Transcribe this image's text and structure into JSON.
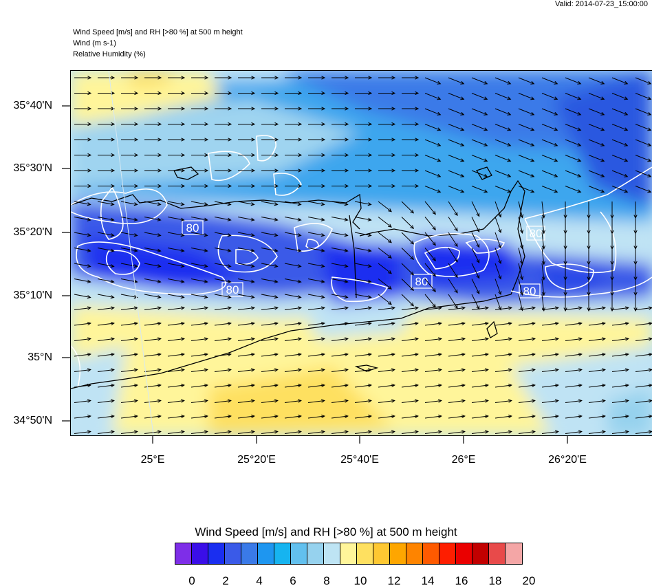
{
  "valid_text": "Valid: 2014-07-23_15:00:00",
  "header": {
    "line1": "Wind Speed [m/s] and RH [>80 %] at 500 m height",
    "line2": "Wind   (m s-1)",
    "line3": "Relative Humidity   (%)"
  },
  "map": {
    "lat_labels": [
      "35°40'N",
      "35°30'N",
      "35°20'N",
      "35°10'N",
      "35°N",
      "34°50'N"
    ],
    "lon_labels": [
      "25°E",
      "25°20'E",
      "25°40'E",
      "26°E",
      "26°20'E"
    ],
    "contour_labels": [
      "80",
      "80",
      "80",
      "80",
      "80"
    ],
    "wind_vector_field": "arrows-grid",
    "rh_contour_level": "80"
  },
  "colorbar": {
    "title": "Wind Speed [m/s] and RH [>80 %] at 500 m height",
    "labels": [
      "0",
      "2",
      "4",
      "6",
      "8",
      "10",
      "12",
      "14",
      "16",
      "18",
      "20"
    ],
    "colors": [
      "#7e2ee8",
      "#3a0ee8",
      "#1a2ef0",
      "#3a5ae8",
      "#3a7ae8",
      "#1e96f0",
      "#16b4f0",
      "#62c0ee",
      "#96d2ee",
      "#bee4f4",
      "#fff59a",
      "#fee060",
      "#fec832",
      "#fea600",
      "#fe8400",
      "#fe5a00",
      "#fe1e00",
      "#ea0000",
      "#c20000",
      "#e84a4a",
      "#f4a6a6"
    ]
  }
}
